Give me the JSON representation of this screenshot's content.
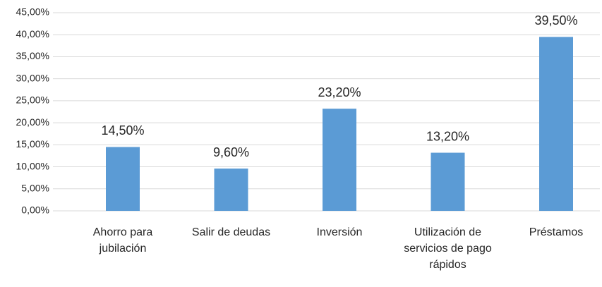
{
  "chart_data": {
    "type": "bar",
    "categories": [
      "Ahorro para jubilación",
      "Salir de deudas",
      "Inversión",
      "Utilización de servicios de pago rápidos",
      "Préstamos"
    ],
    "values": [
      14.5,
      9.6,
      23.2,
      13.2,
      39.5
    ],
    "value_labels": [
      "14,50%",
      "9,60%",
      "23,20%",
      "13,20%",
      "39,50%"
    ],
    "color": "#5b9bd5",
    "ylim": [
      0,
      45
    ],
    "yticks": [
      {
        "value": 0,
        "label": "0,00%"
      },
      {
        "value": 5,
        "label": "5,00%"
      },
      {
        "value": 10,
        "label": "10,00%"
      },
      {
        "value": 15,
        "label": "15,00%"
      },
      {
        "value": 20,
        "label": "20,00%"
      },
      {
        "value": 25,
        "label": "25,00%"
      },
      {
        "value": 30,
        "label": "30,00%"
      },
      {
        "value": 35,
        "label": "35,00%"
      },
      {
        "value": 40,
        "label": "40,00%"
      },
      {
        "value": 45,
        "label": "45,00%"
      }
    ],
    "grid": true
  }
}
